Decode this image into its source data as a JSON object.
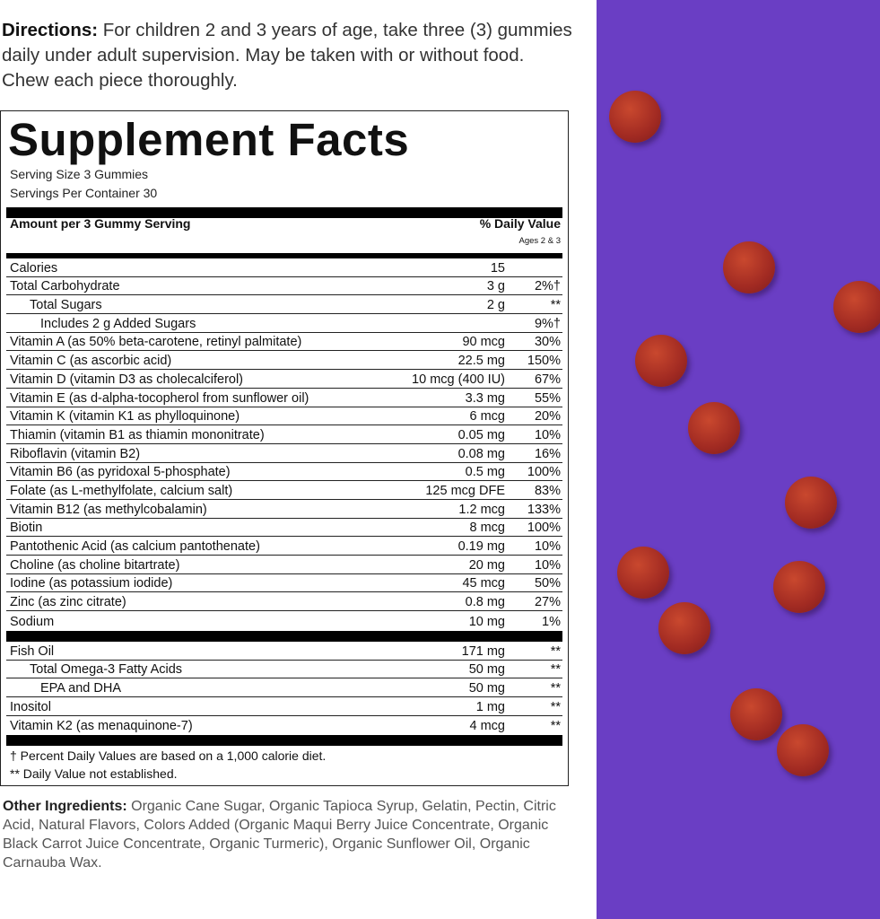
{
  "directions": {
    "label": "Directions:",
    "text": " For children 2 and 3 years of age, take three (3) gummies daily under adult supervision. May be taken with or without food. Chew each piece thoroughly."
  },
  "facts": {
    "title": "Supplement Facts",
    "serving_size": "Serving Size 3 Gummies",
    "servings_per_container": "Servings Per Container 30",
    "amount_header": "Amount per 3 Gummy Serving",
    "dv_header": "% Daily Value",
    "ages": "Ages 2 & 3",
    "rows": [
      {
        "name": "Calories",
        "amount": "15",
        "dv": "",
        "indent": 0
      },
      {
        "name": "Total Carbohydrate",
        "amount": "3 g",
        "dv": "2%†",
        "indent": 0
      },
      {
        "name": "Total Sugars",
        "amount": "2 g",
        "dv": "**",
        "indent": 1
      },
      {
        "name": "Includes 2 g Added Sugars",
        "amount": "",
        "dv": "9%†",
        "indent": 2
      },
      {
        "name": "Vitamin A (as 50% beta-carotene, retinyl palmitate)",
        "amount": "90 mcg",
        "dv": "30%",
        "indent": 0
      },
      {
        "name": "Vitamin C (as ascorbic acid)",
        "amount": "22.5 mg",
        "dv": "150%",
        "indent": 0
      },
      {
        "name": "Vitamin D (vitamin D3 as cholecalciferol)",
        "amount": "10 mcg (400 IU)",
        "dv": "67%",
        "indent": 0
      },
      {
        "name": "Vitamin E (as d-alpha-tocopherol from sunflower oil)",
        "amount": "3.3 mg",
        "dv": "55%",
        "indent": 0
      },
      {
        "name": "Vitamin K (vitamin K1 as phylloquinone)",
        "amount": "6 mcg",
        "dv": "20%",
        "indent": 0
      },
      {
        "name": "Thiamin (vitamin B1 as thiamin mononitrate)",
        "amount": "0.05 mg",
        "dv": "10%",
        "indent": 0
      },
      {
        "name": "Riboflavin (vitamin B2)",
        "amount": "0.08 mg",
        "dv": "16%",
        "indent": 0
      },
      {
        "name": "Vitamin B6 (as pyridoxal 5-phosphate)",
        "amount": "0.5 mg",
        "dv": "100%",
        "indent": 0
      },
      {
        "name": "Folate (as L-methylfolate, calcium salt)",
        "amount": "125 mcg DFE",
        "dv": "83%",
        "indent": 0
      },
      {
        "name": "Vitamin B12 (as methylcobalamin)",
        "amount": "1.2 mcg",
        "dv": "133%",
        "indent": 0
      },
      {
        "name": "Biotin",
        "amount": "8 mcg",
        "dv": "100%",
        "indent": 0
      },
      {
        "name": "Pantothenic Acid (as calcium pantothenate)",
        "amount": "0.19 mg",
        "dv": "10%",
        "indent": 0
      },
      {
        "name": "Choline (as choline bitartrate)",
        "amount": "20 mg",
        "dv": "10%",
        "indent": 0
      },
      {
        "name": "Iodine (as potassium iodide)",
        "amount": "45 mcg",
        "dv": "50%",
        "indent": 0
      },
      {
        "name": "Zinc (as zinc citrate)",
        "amount": "0.8 mg",
        "dv": "27%",
        "indent": 0
      },
      {
        "name": "Sodium",
        "amount": "10 mg",
        "dv": "1%",
        "indent": 0
      }
    ],
    "rows2": [
      {
        "name": "Fish Oil",
        "amount": "171 mg",
        "dv": "**",
        "indent": 0
      },
      {
        "name": "Total Omega-3 Fatty Acids",
        "amount": "50 mg",
        "dv": "**",
        "indent": 1
      },
      {
        "name": "EPA and DHA",
        "amount": "50 mg",
        "dv": "**",
        "indent": 2
      },
      {
        "name": "Inositol",
        "amount": "1 mg",
        "dv": "**",
        "indent": 0
      },
      {
        "name": "Vitamin K2 (as menaquinone-7)",
        "amount": "4 mcg",
        "dv": "**",
        "indent": 0
      }
    ],
    "footnote1": "† Percent Daily Values are based on a 1,000 calorie diet.",
    "footnote2": "** Daily Value not established."
  },
  "other": {
    "label": "Other Ingredients:",
    "text": " Organic Cane Sugar, Organic Tapioca Syrup, Gelatin, Pectin, Citric Acid, Natural Flavors, Colors Added (Organic Maqui Berry Juice Concentrate, Organic Black Carrot Juice Concentrate, Organic Turmeric), Organic Sunflower Oil, Organic Carnauba Wax."
  },
  "colors": {
    "background_purple": "#6a3ec4",
    "gummy": "#b23526"
  }
}
